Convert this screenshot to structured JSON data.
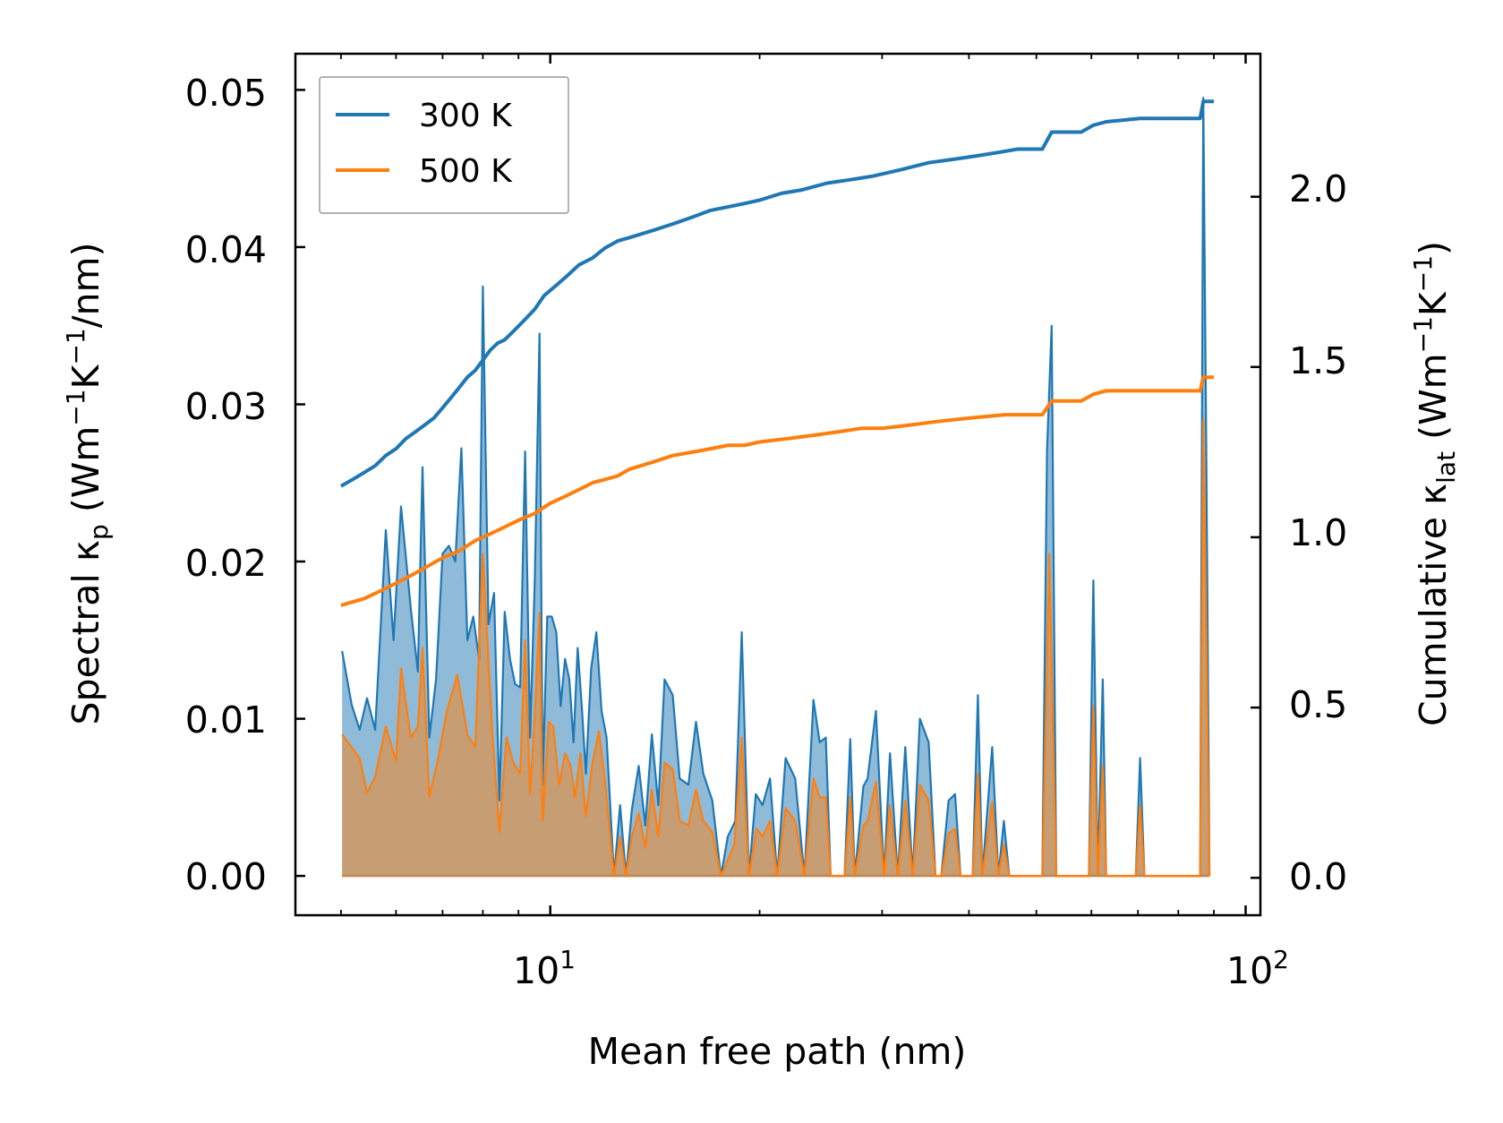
{
  "chart_data": {
    "type": "line",
    "xlabel": "Mean free path (nm)",
    "ylabel_left": "Spectral κ_p (Wm^-1K^-1/nm)",
    "ylabel_right": "Cumulative κ_lat (Wm^-1K^-1)",
    "x_scale": "log",
    "xlim": [
      4.3,
      105
    ],
    "ylim_left": [
      -0.0025,
      0.0523
    ],
    "ylim_right": [
      -0.11,
      2.42
    ],
    "x_tick_labels": [
      {
        "value": 10,
        "base": "10",
        "exp": "1"
      },
      {
        "value": 100,
        "base": "10",
        "exp": "2"
      }
    ],
    "y_ticks_left": [
      "0.00",
      "0.01",
      "0.02",
      "0.03",
      "0.04",
      "0.05"
    ],
    "y_ticks_right": [
      "0.0",
      "0.5",
      "1.0",
      "1.5",
      "2.0"
    ],
    "colors": {
      "300K": "#1f77b4",
      "500K": "#ff7f0e"
    },
    "legend": [
      "300 K",
      "500 K"
    ],
    "legend_position": "upper-left",
    "spectral": {
      "300K": [
        [
          5.02,
          0.0143
        ],
        [
          5.18,
          0.0109
        ],
        [
          5.32,
          0.0093
        ],
        [
          5.45,
          0.0113
        ],
        [
          5.6,
          0.0093
        ],
        [
          5.8,
          0.022
        ],
        [
          5.95,
          0.015
        ],
        [
          6.1,
          0.0235
        ],
        [
          6.3,
          0.017
        ],
        [
          6.45,
          0.013
        ],
        [
          6.55,
          0.026
        ],
        [
          6.7,
          0.0088
        ],
        [
          6.85,
          0.0125
        ],
        [
          7.0,
          0.0205
        ],
        [
          7.15,
          0.021
        ],
        [
          7.3,
          0.02
        ],
        [
          7.45,
          0.0272
        ],
        [
          7.6,
          0.015
        ],
        [
          7.75,
          0.0165
        ],
        [
          7.9,
          0.0138
        ],
        [
          8.0,
          0.0375
        ],
        [
          8.15,
          0.016
        ],
        [
          8.3,
          0.018
        ],
        [
          8.45,
          0.0048
        ],
        [
          8.6,
          0.0168
        ],
        [
          8.75,
          0.0138
        ],
        [
          8.9,
          0.0122
        ],
        [
          9.05,
          0.012
        ],
        [
          9.2,
          0.027
        ],
        [
          9.35,
          0.0088
        ],
        [
          9.5,
          0.0188
        ],
        [
          9.65,
          0.0345
        ],
        [
          9.75,
          0.0058
        ],
        [
          9.9,
          0.0165
        ],
        [
          10.05,
          0.0165
        ],
        [
          10.2,
          0.0155
        ],
        [
          10.35,
          0.0108
        ],
        [
          10.5,
          0.0138
        ],
        [
          10.65,
          0.0125
        ],
        [
          10.8,
          0.0085
        ],
        [
          10.95,
          0.0145
        ],
        [
          11.1,
          0.0108
        ],
        [
          11.25,
          0.0065
        ],
        [
          11.45,
          0.0132
        ],
        [
          11.65,
          0.0155
        ],
        [
          11.85,
          0.0105
        ],
        [
          12.05,
          0.0088
        ],
        [
          12.35,
          0
        ],
        [
          12.6,
          0.0045
        ],
        [
          12.85,
          0
        ],
        [
          13.1,
          0.0042
        ],
        [
          13.4,
          0.007
        ],
        [
          13.7,
          0.0032
        ],
        [
          14.0,
          0.009
        ],
        [
          14.3,
          0.0045
        ],
        [
          14.6,
          0.0125
        ],
        [
          15.0,
          0.0115
        ],
        [
          15.35,
          0.0062
        ],
        [
          15.8,
          0.0058
        ],
        [
          16.2,
          0.0098
        ],
        [
          16.6,
          0.0065
        ],
        [
          17.1,
          0.0048
        ],
        [
          17.6,
          0
        ],
        [
          18.0,
          0.0025
        ],
        [
          18.45,
          0.0035
        ],
        [
          18.85,
          0.0155
        ],
        [
          19.3,
          0
        ],
        [
          19.75,
          0.0052
        ],
        [
          20.2,
          0.0045
        ],
        [
          20.7,
          0.0062
        ],
        [
          21.2,
          0
        ],
        [
          21.8,
          0.0075
        ],
        [
          22.5,
          0.0062
        ],
        [
          23.2,
          0
        ],
        [
          23.9,
          0.0112
        ],
        [
          24.4,
          0.0085
        ],
        [
          24.9,
          0.0088
        ],
        [
          25.3,
          0
        ],
        [
          26.5,
          0
        ],
        [
          27.0,
          0.0087
        ],
        [
          27.4,
          0
        ],
        [
          28.2,
          0.0057
        ],
        [
          28.6,
          0.0062
        ],
        [
          29.4,
          0.0105
        ],
        [
          30.2,
          0
        ],
        [
          30.8,
          0.0078
        ],
        [
          31.6,
          0
        ],
        [
          32.4,
          0.0082
        ],
        [
          33.2,
          0
        ],
        [
          34.0,
          0.01
        ],
        [
          35.0,
          0.0085
        ],
        [
          35.8,
          0
        ],
        [
          36.5,
          0
        ],
        [
          37.4,
          0.0048
        ],
        [
          38.2,
          0.0052
        ],
        [
          38.9,
          0
        ],
        [
          40.5,
          0
        ],
        [
          41.2,
          0.0115
        ],
        [
          41.8,
          0
        ],
        [
          43.2,
          0.0082
        ],
        [
          44.1,
          0
        ],
        [
          44.9,
          0.0035
        ],
        [
          45.7,
          0
        ],
        [
          51.0,
          0
        ],
        [
          51.8,
          0.027
        ],
        [
          52.6,
          0.035
        ],
        [
          53.4,
          0
        ],
        [
          59.5,
          0
        ],
        [
          60.4,
          0.0188
        ],
        [
          61.3,
          0
        ],
        [
          62.3,
          0.0125
        ],
        [
          63.0,
          0
        ],
        [
          69.5,
          0
        ],
        [
          70.5,
          0.0075
        ],
        [
          71.5,
          0
        ],
        [
          86.0,
          0
        ],
        [
          86.9,
          0.0495
        ],
        [
          87.8,
          0.0265
        ],
        [
          88.7,
          0
        ]
      ],
      "500K": [
        [
          5.02,
          0.009
        ],
        [
          5.32,
          0.0075
        ],
        [
          5.45,
          0.0053
        ],
        [
          5.6,
          0.0063
        ],
        [
          5.8,
          0.0095
        ],
        [
          6.0,
          0.0073
        ],
        [
          6.1,
          0.0132
        ],
        [
          6.3,
          0.0088
        ],
        [
          6.45,
          0.0095
        ],
        [
          6.55,
          0.0145
        ],
        [
          6.7,
          0.005
        ],
        [
          6.9,
          0.0075
        ],
        [
          7.1,
          0.0105
        ],
        [
          7.35,
          0.0128
        ],
        [
          7.6,
          0.009
        ],
        [
          7.8,
          0.0082
        ],
        [
          8.0,
          0.0205
        ],
        [
          8.25,
          0.0092
        ],
        [
          8.45,
          0.0028
        ],
        [
          8.65,
          0.0088
        ],
        [
          8.85,
          0.0072
        ],
        [
          9.05,
          0.0065
        ],
        [
          9.2,
          0.015
        ],
        [
          9.35,
          0.0052
        ],
        [
          9.5,
          0.0102
        ],
        [
          9.65,
          0.0167
        ],
        [
          9.75,
          0.0035
        ],
        [
          9.95,
          0.0098
        ],
        [
          10.1,
          0.0095
        ],
        [
          10.3,
          0.0058
        ],
        [
          10.5,
          0.0078
        ],
        [
          10.7,
          0.007
        ],
        [
          10.85,
          0.005
        ],
        [
          11.05,
          0.0078
        ],
        [
          11.25,
          0.0038
        ],
        [
          11.5,
          0.0072
        ],
        [
          11.75,
          0.0092
        ],
        [
          12.0,
          0.0058
        ],
        [
          12.35,
          0
        ],
        [
          12.6,
          0.0025
        ],
        [
          12.85,
          0
        ],
        [
          13.1,
          0.0025
        ],
        [
          13.4,
          0.004
        ],
        [
          13.7,
          0.0018
        ],
        [
          14.0,
          0.0055
        ],
        [
          14.3,
          0.0025
        ],
        [
          14.6,
          0.0072
        ],
        [
          15.0,
          0.0068
        ],
        [
          15.35,
          0.0035
        ],
        [
          15.8,
          0.0032
        ],
        [
          16.2,
          0.0055
        ],
        [
          16.6,
          0.0035
        ],
        [
          17.1,
          0.0028
        ],
        [
          17.6,
          0
        ],
        [
          18.4,
          0.002
        ],
        [
          18.85,
          0.0088
        ],
        [
          19.3,
          0
        ],
        [
          19.8,
          0.003
        ],
        [
          20.2,
          0.0025
        ],
        [
          20.7,
          0.0035
        ],
        [
          21.2,
          0
        ],
        [
          21.8,
          0.0043
        ],
        [
          22.5,
          0.0035
        ],
        [
          23.2,
          0
        ],
        [
          23.9,
          0.0062
        ],
        [
          24.4,
          0.005
        ],
        [
          24.9,
          0.005
        ],
        [
          25.3,
          0
        ],
        [
          26.5,
          0
        ],
        [
          27.0,
          0.005
        ],
        [
          27.4,
          0
        ],
        [
          28.2,
          0.0032
        ],
        [
          28.6,
          0.0035
        ],
        [
          29.4,
          0.006
        ],
        [
          30.2,
          0
        ],
        [
          30.8,
          0.0045
        ],
        [
          31.6,
          0
        ],
        [
          32.4,
          0.0048
        ],
        [
          33.2,
          0
        ],
        [
          34.0,
          0.0058
        ],
        [
          35.0,
          0.0048
        ],
        [
          35.8,
          0
        ],
        [
          36.5,
          0
        ],
        [
          37.4,
          0.0027
        ],
        [
          38.2,
          0.003
        ],
        [
          38.9,
          0
        ],
        [
          40.5,
          0
        ],
        [
          41.2,
          0.0065
        ],
        [
          41.8,
          0
        ],
        [
          43.2,
          0.0047
        ],
        [
          44.1,
          0
        ],
        [
          44.9,
          0.002
        ],
        [
          45.7,
          0
        ],
        [
          51.0,
          0
        ],
        [
          52.2,
          0.0205
        ],
        [
          53.4,
          0
        ],
        [
          59.5,
          0
        ],
        [
          60.4,
          0.0108
        ],
        [
          61.3,
          0
        ],
        [
          62.3,
          0.007
        ],
        [
          63.0,
          0
        ],
        [
          69.5,
          0
        ],
        [
          70.5,
          0.0045
        ],
        [
          71.5,
          0
        ],
        [
          86.0,
          0
        ],
        [
          86.9,
          0.029
        ],
        [
          87.8,
          0.015
        ],
        [
          88.7,
          0
        ]
      ]
    },
    "cumulative": {
      "300K": [
        [
          5.0,
          1.15
        ],
        [
          5.2,
          1.17
        ],
        [
          5.4,
          1.19
        ],
        [
          5.6,
          1.21
        ],
        [
          5.8,
          1.24
        ],
        [
          6.0,
          1.26
        ],
        [
          6.2,
          1.29
        ],
        [
          6.4,
          1.31
        ],
        [
          6.6,
          1.33
        ],
        [
          6.8,
          1.35
        ],
        [
          7.0,
          1.38
        ],
        [
          7.2,
          1.41
        ],
        [
          7.4,
          1.44
        ],
        [
          7.6,
          1.47
        ],
        [
          7.8,
          1.49
        ],
        [
          8.0,
          1.52
        ],
        [
          8.2,
          1.55
        ],
        [
          8.4,
          1.57
        ],
        [
          8.6,
          1.58
        ],
        [
          8.8,
          1.6
        ],
        [
          9.0,
          1.62
        ],
        [
          9.2,
          1.64
        ],
        [
          9.5,
          1.67
        ],
        [
          9.8,
          1.71
        ],
        [
          10.2,
          1.74
        ],
        [
          10.6,
          1.77
        ],
        [
          11.0,
          1.8
        ],
        [
          11.5,
          1.82
        ],
        [
          12.0,
          1.85
        ],
        [
          12.5,
          1.87
        ],
        [
          13.0,
          1.88
        ],
        [
          14.0,
          1.9
        ],
        [
          15.0,
          1.92
        ],
        [
          16.0,
          1.94
        ],
        [
          17.0,
          1.96
        ],
        [
          18.0,
          1.97
        ],
        [
          19.0,
          1.98
        ],
        [
          20.0,
          1.99
        ],
        [
          21.5,
          2.01
        ],
        [
          23.0,
          2.02
        ],
        [
          25.0,
          2.04
        ],
        [
          27.0,
          2.05
        ],
        [
          29.0,
          2.06
        ],
        [
          32.0,
          2.08
        ],
        [
          35.0,
          2.1
        ],
        [
          38.0,
          2.11
        ],
        [
          41.0,
          2.12
        ],
        [
          44.0,
          2.13
        ],
        [
          47.0,
          2.14
        ],
        [
          51.0,
          2.14
        ],
        [
          52.6,
          2.19
        ],
        [
          58.0,
          2.19
        ],
        [
          60.4,
          2.21
        ],
        [
          63.0,
          2.22
        ],
        [
          70.5,
          2.23
        ],
        [
          86.0,
          2.23
        ],
        [
          86.9,
          2.28
        ],
        [
          90.0,
          2.28
        ]
      ],
      "500K": [
        [
          5.0,
          0.8
        ],
        [
          5.4,
          0.82
        ],
        [
          5.8,
          0.85
        ],
        [
          6.2,
          0.88
        ],
        [
          6.6,
          0.91
        ],
        [
          7.0,
          0.94
        ],
        [
          7.4,
          0.96
        ],
        [
          7.8,
          0.99
        ],
        [
          8.2,
          1.01
        ],
        [
          8.6,
          1.03
        ],
        [
          9.0,
          1.05
        ],
        [
          9.5,
          1.07
        ],
        [
          10.0,
          1.1
        ],
        [
          10.5,
          1.12
        ],
        [
          11.0,
          1.14
        ],
        [
          11.5,
          1.16
        ],
        [
          12.0,
          1.17
        ],
        [
          12.5,
          1.18
        ],
        [
          13.0,
          1.2
        ],
        [
          14.0,
          1.22
        ],
        [
          15.0,
          1.24
        ],
        [
          16.0,
          1.25
        ],
        [
          17.0,
          1.26
        ],
        [
          18.0,
          1.27
        ],
        [
          19.0,
          1.27
        ],
        [
          20.0,
          1.28
        ],
        [
          22.0,
          1.29
        ],
        [
          24.0,
          1.3
        ],
        [
          26.0,
          1.31
        ],
        [
          28.0,
          1.32
        ],
        [
          30.0,
          1.32
        ],
        [
          33.0,
          1.33
        ],
        [
          36.0,
          1.34
        ],
        [
          40.0,
          1.35
        ],
        [
          45.0,
          1.36
        ],
        [
          51.0,
          1.36
        ],
        [
          52.6,
          1.4
        ],
        [
          58.0,
          1.4
        ],
        [
          60.4,
          1.42
        ],
        [
          63.0,
          1.43
        ],
        [
          70.5,
          1.43
        ],
        [
          86.0,
          1.43
        ],
        [
          86.9,
          1.47
        ],
        [
          90.0,
          1.47
        ]
      ]
    }
  }
}
